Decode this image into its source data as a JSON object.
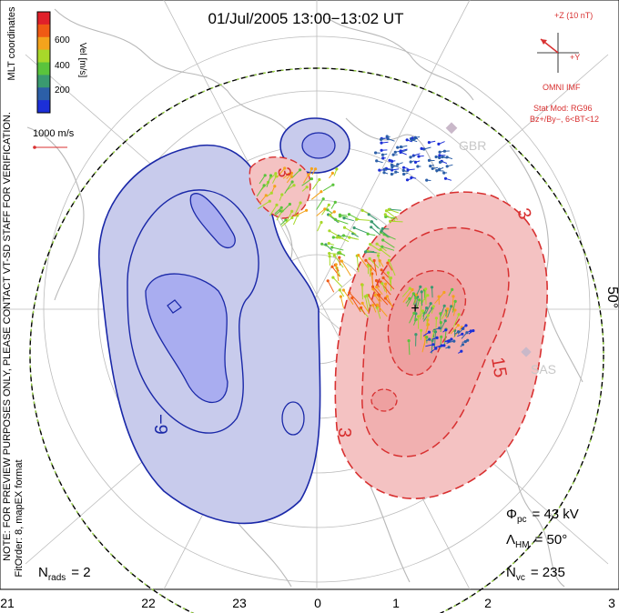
{
  "title": "01/Jul/2005 13:00−13:02 UT",
  "colorbar": {
    "label": "Vel [m/s]",
    "ticks": [
      "600",
      "400",
      "200"
    ],
    "colors": [
      "#e0202a",
      "#f05a14",
      "#f4a31c",
      "#a8d82a",
      "#5ac43c",
      "#3a9a70",
      "#2c5fa8",
      "#1c2fd8"
    ]
  },
  "side_labels": {
    "coord": "MLT coordinates",
    "note": "NOTE: FOR PREVIEW PURPOSES ONLY, PLEASE CONTACT VT-SD STAFF FOR VERIFICATION.",
    "fit": "FitOrder: 8, mapEX format"
  },
  "scale": {
    "label": "1000 m/s"
  },
  "imf": {
    "z_label": "+Z (10 nT)",
    "y_label": "+Y",
    "source": "OMNI IMF",
    "stat_mod": "Stat Mod: RG96",
    "condition": "Bz+/By−, 6<BT<12"
  },
  "radars": [
    {
      "name": "GBR"
    },
    {
      "name": "SAS"
    }
  ],
  "contour_labels": [
    "3",
    "3",
    "3",
    "15",
    "−9"
  ],
  "latitude_label": "50°",
  "stats": {
    "phi_symbol": "Φ",
    "phi_sub": "pc",
    "phi_value": "= 43 kV",
    "lambda_symbol": "Λ",
    "lambda_sub": "HM",
    "lambda_value": "= 50°",
    "nvc_symbol": "N",
    "nvc_sub": "vc",
    "nvc_value": "= 235",
    "nrads_symbol": "N",
    "nrads_sub": "rads",
    "nrads_value": "= 2"
  },
  "mlt_ticks": [
    "21",
    "22",
    "23",
    "0",
    "1",
    "2",
    "3"
  ],
  "colors": {
    "neg": "#1a28a8",
    "pos": "#d83030",
    "neg_fill": "#c8cbec",
    "pos_fill": "#f4c2c2",
    "coast": "#b8b8b8"
  }
}
